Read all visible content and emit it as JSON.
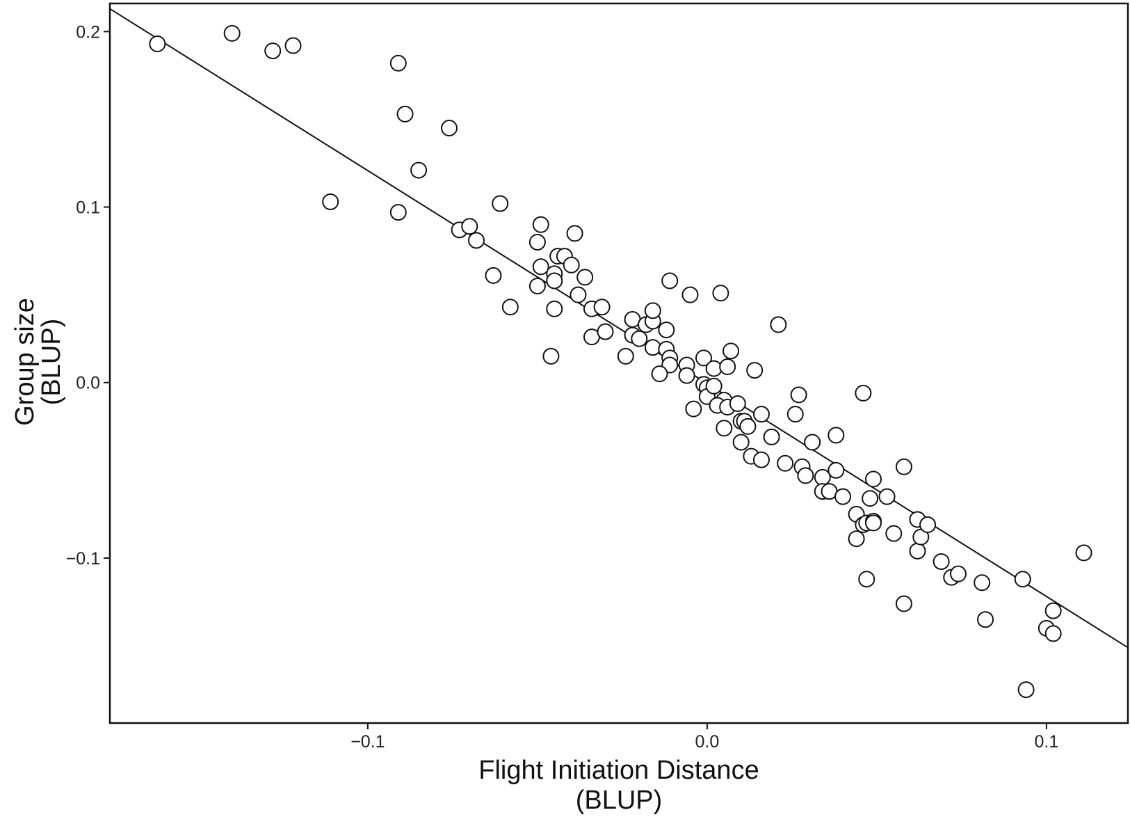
{
  "chart_data": {
    "type": "scatter",
    "title": "",
    "xlabel": [
      "Flight Initiation Distance",
      "(BLUP)"
    ],
    "ylabel": [
      "Group size",
      "(BLUP)"
    ],
    "xlim": [
      -0.176,
      0.124
    ],
    "ylim": [
      -0.194,
      0.216
    ],
    "xticks": [
      -0.1,
      0.0,
      0.1
    ],
    "xtick_labels": [
      "−0.1",
      "0.0",
      "0.1"
    ],
    "yticks": [
      -0.1,
      0.0,
      0.1,
      0.2
    ],
    "ytick_labels": [
      "−0.1",
      "0.0",
      "0.1",
      "0.2"
    ],
    "grid": false,
    "legend": "none",
    "marker": "open-circle",
    "colors": {
      "line": "#111111",
      "marker_stroke": "#111111",
      "marker_fill": "#ffffff",
      "frame": "#111111"
    },
    "fit_line": {
      "x": [
        -0.176,
        0.124
      ],
      "y": [
        0.213,
        -0.151
      ]
    },
    "points": [
      [
        -0.162,
        0.193
      ],
      [
        -0.14,
        0.199
      ],
      [
        -0.128,
        0.189
      ],
      [
        -0.122,
        0.192
      ],
      [
        -0.111,
        0.103
      ],
      [
        -0.091,
        0.182
      ],
      [
        -0.089,
        0.153
      ],
      [
        -0.091,
        0.097
      ],
      [
        -0.085,
        0.121
      ],
      [
        -0.076,
        0.145
      ],
      [
        -0.073,
        0.087
      ],
      [
        -0.07,
        0.089
      ],
      [
        -0.068,
        0.081
      ],
      [
        -0.061,
        0.102
      ],
      [
        -0.063,
        0.061
      ],
      [
        -0.058,
        0.043
      ],
      [
        -0.049,
        0.09
      ],
      [
        -0.05,
        0.08
      ],
      [
        -0.049,
        0.066
      ],
      [
        -0.05,
        0.055
      ],
      [
        -0.045,
        0.062
      ],
      [
        -0.045,
        0.058
      ],
      [
        -0.044,
        0.072
      ],
      [
        -0.042,
        0.072
      ],
      [
        -0.04,
        0.067
      ],
      [
        -0.039,
        0.085
      ],
      [
        -0.036,
        0.06
      ],
      [
        -0.038,
        0.05
      ],
      [
        -0.046,
        0.015
      ],
      [
        -0.045,
        0.042
      ],
      [
        -0.034,
        0.042
      ],
      [
        -0.031,
        0.043
      ],
      [
        -0.034,
        0.026
      ],
      [
        -0.03,
        0.029
      ],
      [
        -0.024,
        0.015
      ],
      [
        -0.022,
        0.036
      ],
      [
        -0.022,
        0.027
      ],
      [
        -0.02,
        0.025
      ],
      [
        -0.018,
        0.033
      ],
      [
        -0.016,
        0.035
      ],
      [
        -0.016,
        0.041
      ],
      [
        -0.011,
        0.058
      ],
      [
        -0.016,
        0.02
      ],
      [
        -0.012,
        0.03
      ],
      [
        -0.012,
        0.019
      ],
      [
        -0.011,
        0.014
      ],
      [
        -0.011,
        0.01
      ],
      [
        -0.014,
        0.005
      ],
      [
        -0.005,
        0.05
      ],
      [
        -0.006,
        0.01
      ],
      [
        -0.006,
        0.004
      ],
      [
        -0.004,
        -0.015
      ],
      [
        -0.001,
        0.014
      ],
      [
        -0.001,
        -0.001
      ],
      [
        0.0,
        -0.003
      ],
      [
        0.0,
        -0.008
      ],
      [
        0.002,
        -0.002
      ],
      [
        0.002,
        0.008
      ],
      [
        0.004,
        0.051
      ],
      [
        0.005,
        -0.01
      ],
      [
        0.006,
        0.009
      ],
      [
        0.007,
        0.018
      ],
      [
        0.003,
        -0.013
      ],
      [
        0.006,
        -0.014
      ],
      [
        0.009,
        -0.012
      ],
      [
        0.005,
        -0.026
      ],
      [
        0.01,
        -0.022
      ],
      [
        0.011,
        -0.022
      ],
      [
        0.01,
        -0.034
      ],
      [
        0.012,
        -0.025
      ],
      [
        0.014,
        0.007
      ],
      [
        0.013,
        -0.042
      ],
      [
        0.016,
        -0.044
      ],
      [
        0.016,
        -0.018
      ],
      [
        0.019,
        -0.031
      ],
      [
        0.021,
        0.033
      ],
      [
        0.023,
        -0.046
      ],
      [
        0.026,
        -0.018
      ],
      [
        0.027,
        -0.007
      ],
      [
        0.028,
        -0.048
      ],
      [
        0.029,
        -0.053
      ],
      [
        0.031,
        -0.034
      ],
      [
        0.034,
        -0.054
      ],
      [
        0.034,
        -0.062
      ],
      [
        0.036,
        -0.062
      ],
      [
        0.038,
        -0.03
      ],
      [
        0.038,
        -0.05
      ],
      [
        0.04,
        -0.065
      ],
      [
        0.044,
        -0.075
      ],
      [
        0.044,
        -0.089
      ],
      [
        0.046,
        -0.006
      ],
      [
        0.046,
        -0.081
      ],
      [
        0.047,
        -0.08
      ],
      [
        0.048,
        -0.066
      ],
      [
        0.047,
        -0.112
      ],
      [
        0.049,
        -0.055
      ],
      [
        0.049,
        -0.079
      ],
      [
        0.049,
        -0.08
      ],
      [
        0.053,
        -0.065
      ],
      [
        0.055,
        -0.086
      ],
      [
        0.058,
        -0.048
      ],
      [
        0.058,
        -0.126
      ],
      [
        0.062,
        -0.078
      ],
      [
        0.062,
        -0.096
      ],
      [
        0.063,
        -0.088
      ],
      [
        0.065,
        -0.081
      ],
      [
        0.069,
        -0.102
      ],
      [
        0.072,
        -0.111
      ],
      [
        0.074,
        -0.109
      ],
      [
        0.081,
        -0.114
      ],
      [
        0.082,
        -0.135
      ],
      [
        0.093,
        -0.112
      ],
      [
        0.094,
        -0.175
      ],
      [
        0.1,
        -0.14
      ],
      [
        0.102,
        -0.13
      ],
      [
        0.102,
        -0.143
      ],
      [
        0.111,
        -0.097
      ]
    ]
  }
}
